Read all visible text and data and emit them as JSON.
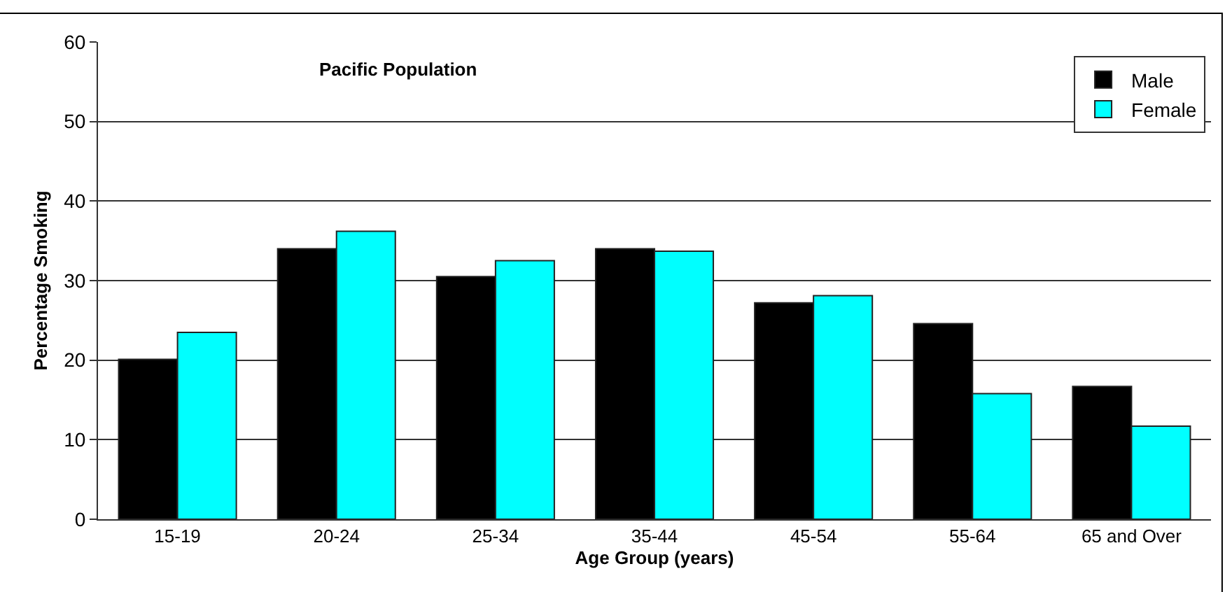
{
  "chart_data": {
    "type": "bar",
    "title": "Pacific Population",
    "xlabel": "Age Group (years)",
    "ylabel": "Percentage Smoking",
    "categories": [
      "15-19",
      "20-24",
      "25-34",
      "35-44",
      "45-54",
      "55-64",
      "65 and Over"
    ],
    "series": [
      {
        "name": "Male",
        "color": "#000000",
        "values": [
          20.1,
          34.0,
          30.5,
          34.0,
          27.2,
          24.6,
          16.7
        ]
      },
      {
        "name": "Female",
        "color": "#00ffff",
        "values": [
          23.5,
          36.2,
          32.5,
          33.7,
          28.1,
          15.8,
          11.7
        ]
      }
    ],
    "ylim": [
      0,
      60
    ],
    "yticks": [
      0,
      10,
      20,
      30,
      40,
      50,
      60
    ],
    "grid": "y",
    "legend": "top right"
  }
}
